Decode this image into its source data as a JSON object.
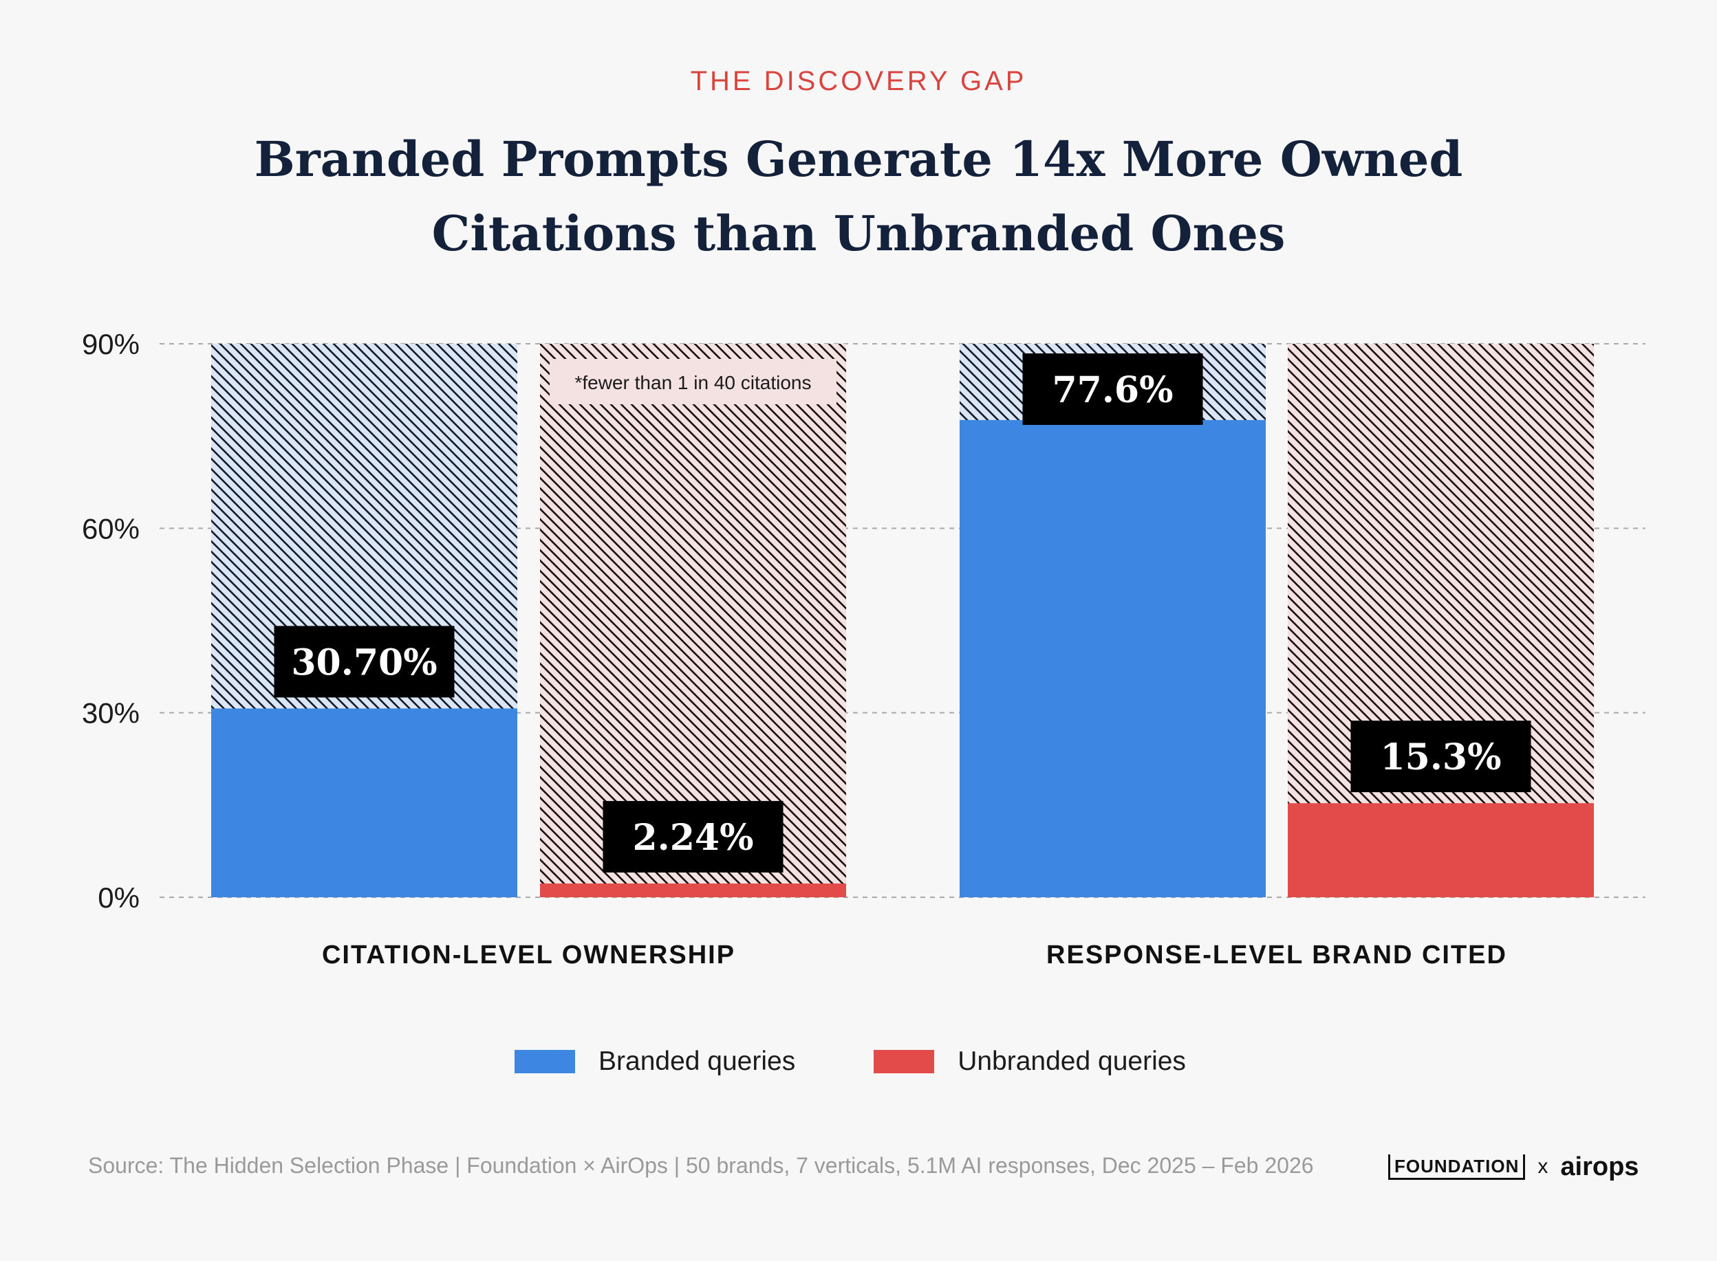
{
  "header": {
    "eyebrow": "THE DISCOVERY GAP",
    "title_line1": "Branded Prompts Generate 14x More Owned",
    "title_line2": "Citations than Unbranded Ones"
  },
  "chart_data": {
    "type": "bar",
    "categories": [
      "CITATION-LEVEL OWNERSHIP",
      "RESPONSE-LEVEL BRAND CITED"
    ],
    "series": [
      {
        "name": "Branded queries",
        "values": [
          30.7,
          77.6
        ],
        "labels": [
          "30.70%",
          "77.6%"
        ],
        "color": "#3d87e3"
      },
      {
        "name": "Unbranded queries",
        "values": [
          2.24,
          15.3
        ],
        "labels": [
          "2.24%",
          "15.3%"
        ],
        "color": "#e24b4a"
      }
    ],
    "ylim": [
      0,
      90
    ],
    "yticks": [
      0,
      30,
      60,
      90
    ],
    "ytick_labels": [
      "0%",
      "30%",
      "60%",
      "90%"
    ],
    "annotation": "*fewer than 1 in 40 citations",
    "grid": true,
    "legend_position": "bottom-center"
  },
  "legend": {
    "branded": "Branded queries",
    "unbranded": "Unbranded queries"
  },
  "footer": {
    "source": "Source: The Hidden Selection Phase | Foundation × AirOps | 50 brands, 7 verticals, 5.1M AI responses, Dec 2025 – Feb 2026",
    "logo_foundation": "FOUNDATION",
    "logo_x": "x",
    "logo_airops": "airops"
  },
  "colors": {
    "branded": "#3d87e3",
    "unbranded": "#e24b4a",
    "branded_hatch_bg": "#dbe6f4",
    "unbranded_hatch_bg": "#f4e1e1",
    "accent": "#d9443f",
    "title": "#14213b"
  }
}
